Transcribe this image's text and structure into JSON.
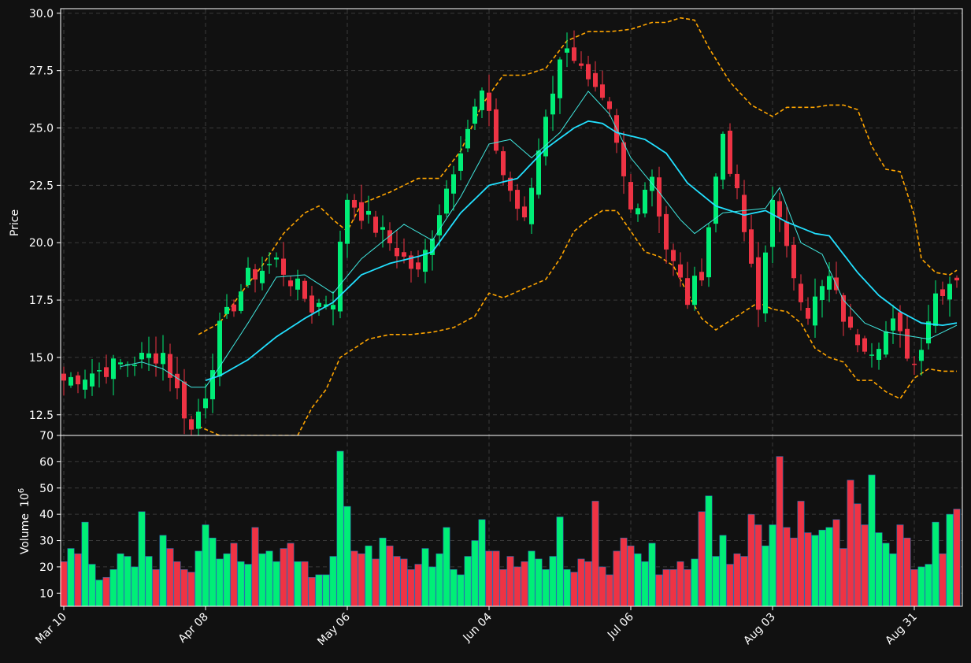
{
  "chart_data": {
    "type": "candlestick",
    "colors": {
      "background": "#111111",
      "up": "#00ee77",
      "down": "#ee3344",
      "ma_fast": "#40e8e0",
      "ma_slow": "#22e0ff",
      "band": "#ffa500",
      "grid": "#3a3a3a",
      "axis": "#ffffff"
    },
    "price_panel": {
      "ylabel": "Price",
      "ylim": [
        11.6,
        30.2
      ],
      "yticks": [
        12.5,
        15.0,
        17.5,
        20.0,
        22.5,
        25.0,
        27.5,
        30.0
      ],
      "ytick_labels": [
        "12.5",
        "15.0",
        "17.5",
        "20.0",
        "22.5",
        "25.0",
        "27.5",
        "30.0"
      ],
      "grid": true
    },
    "volume_panel": {
      "ylabel": "Volume",
      "ylabel_exp": "10",
      "ylabel_sup": "6",
      "ylim": [
        5,
        70
      ],
      "yticks": [
        10,
        20,
        30,
        40,
        50,
        60,
        70
      ],
      "ytick_labels": [
        "10",
        "20",
        "30",
        "40",
        "50",
        "60",
        "70"
      ],
      "grid": true
    },
    "xtick_indices": [
      0,
      20,
      40,
      60,
      80,
      100,
      120
    ],
    "xtick_labels": [
      "Mar 10",
      "Apr 08",
      "May 06",
      "Jun 04",
      "Jul 06",
      "Aug 03",
      "Aug 31"
    ],
    "close_anchors": [
      [
        0,
        14.0
      ],
      [
        8,
        14.7
      ],
      [
        14,
        15.2
      ],
      [
        18,
        11.8
      ],
      [
        20,
        13.5
      ],
      [
        22,
        16.2
      ],
      [
        26,
        18.5
      ],
      [
        30,
        19.2
      ],
      [
        35,
        17.2
      ],
      [
        38,
        17.6
      ],
      [
        40,
        22.0
      ],
      [
        46,
        20.0
      ],
      [
        50,
        18.6
      ],
      [
        52,
        20.5
      ],
      [
        56,
        24.3
      ],
      [
        59,
        26.5
      ],
      [
        62,
        23.0
      ],
      [
        65,
        20.8
      ],
      [
        68,
        25.7
      ],
      [
        71,
        28.8
      ],
      [
        74,
        26.8
      ],
      [
        77,
        25.5
      ],
      [
        80,
        21.4
      ],
      [
        83,
        23.0
      ],
      [
        85,
        19.8
      ],
      [
        88,
        17.5
      ],
      [
        90,
        18.8
      ],
      [
        93,
        24.8
      ],
      [
        96,
        20.5
      ],
      [
        98,
        17.0
      ],
      [
        100,
        22.2
      ],
      [
        102,
        19.5
      ],
      [
        105,
        17.0
      ],
      [
        108,
        18.4
      ],
      [
        111,
        16.0
      ],
      [
        114,
        15.5
      ],
      [
        117,
        16.4
      ],
      [
        120,
        14.7
      ],
      [
        123,
        17.8
      ],
      [
        126,
        18.6
      ]
    ],
    "ma_fast_anchors": [
      [
        8,
        14.6
      ],
      [
        11,
        14.8
      ],
      [
        14,
        14.5
      ],
      [
        18,
        13.7
      ],
      [
        20,
        13.7
      ],
      [
        22,
        14.6
      ],
      [
        26,
        16.5
      ],
      [
        30,
        18.5
      ],
      [
        34,
        18.6
      ],
      [
        38,
        17.8
      ],
      [
        42,
        19.3
      ],
      [
        48,
        20.8
      ],
      [
        52,
        20.1
      ],
      [
        56,
        22.0
      ],
      [
        60,
        24.3
      ],
      [
        63,
        24.5
      ],
      [
        66,
        23.7
      ],
      [
        70,
        24.8
      ],
      [
        74,
        26.6
      ],
      [
        77,
        25.6
      ],
      [
        80,
        23.7
      ],
      [
        84,
        22.2
      ],
      [
        87,
        21.0
      ],
      [
        89,
        20.4
      ],
      [
        93,
        21.3
      ],
      [
        96,
        21.4
      ],
      [
        99,
        21.5
      ],
      [
        101,
        22.4
      ],
      [
        104,
        20.0
      ],
      [
        107,
        19.5
      ],
      [
        110,
        17.5
      ],
      [
        113,
        16.5
      ],
      [
        116,
        16.1
      ],
      [
        120,
        15.9
      ],
      [
        122,
        15.8
      ],
      [
        126,
        16.4
      ]
    ],
    "ma_slow_anchors": [
      [
        20,
        14.0
      ],
      [
        22,
        14.2
      ],
      [
        26,
        14.9
      ],
      [
        30,
        15.9
      ],
      [
        34,
        16.7
      ],
      [
        38,
        17.4
      ],
      [
        42,
        18.6
      ],
      [
        46,
        19.1
      ],
      [
        50,
        19.4
      ],
      [
        52,
        19.6
      ],
      [
        56,
        21.3
      ],
      [
        60,
        22.5
      ],
      [
        64,
        22.8
      ],
      [
        68,
        24.1
      ],
      [
        72,
        25.0
      ],
      [
        74,
        25.3
      ],
      [
        76,
        25.2
      ],
      [
        78,
        24.8
      ],
      [
        82,
        24.5
      ],
      [
        85,
        23.9
      ],
      [
        88,
        22.6
      ],
      [
        92,
        21.6
      ],
      [
        96,
        21.2
      ],
      [
        99,
        21.4
      ],
      [
        102,
        20.9
      ],
      [
        106,
        20.4
      ],
      [
        108,
        20.3
      ],
      [
        112,
        18.7
      ],
      [
        115,
        17.7
      ],
      [
        118,
        17.0
      ],
      [
        121,
        16.5
      ],
      [
        124,
        16.4
      ],
      [
        126,
        16.5
      ]
    ],
    "band_upper_anchors": [
      [
        19,
        16.0
      ],
      [
        22,
        16.5
      ],
      [
        25,
        17.8
      ],
      [
        28,
        19.0
      ],
      [
        31,
        20.4
      ],
      [
        34,
        21.3
      ],
      [
        36,
        21.6
      ],
      [
        38,
        21.0
      ],
      [
        40,
        20.5
      ],
      [
        42,
        21.7
      ],
      [
        46,
        22.2
      ],
      [
        48,
        22.5
      ],
      [
        50,
        22.8
      ],
      [
        53,
        22.8
      ],
      [
        56,
        24.0
      ],
      [
        59,
        26.0
      ],
      [
        62,
        27.3
      ],
      [
        65,
        27.3
      ],
      [
        68,
        27.6
      ],
      [
        71,
        28.8
      ],
      [
        74,
        29.2
      ],
      [
        77,
        29.2
      ],
      [
        80,
        29.3
      ],
      [
        83,
        29.6
      ],
      [
        85,
        29.6
      ],
      [
        87,
        29.8
      ],
      [
        89,
        29.7
      ],
      [
        91,
        28.5
      ],
      [
        94,
        27.0
      ],
      [
        97,
        26.0
      ],
      [
        100,
        25.5
      ],
      [
        102,
        25.9
      ],
      [
        104,
        25.9
      ],
      [
        106,
        25.9
      ],
      [
        108,
        26.0
      ],
      [
        110,
        26.0
      ],
      [
        112,
        25.8
      ],
      [
        114,
        24.2
      ],
      [
        116,
        23.2
      ],
      [
        118,
        23.1
      ],
      [
        120,
        21.2
      ],
      [
        121,
        19.3
      ],
      [
        123,
        18.7
      ],
      [
        125,
        18.6
      ],
      [
        126,
        18.8
      ]
    ],
    "band_lower_anchors": [
      [
        19,
        12.0
      ],
      [
        22,
        11.6
      ],
      [
        33,
        11.6
      ],
      [
        35,
        12.8
      ],
      [
        37,
        13.6
      ],
      [
        39,
        15.0
      ],
      [
        41,
        15.4
      ],
      [
        43,
        15.8
      ],
      [
        46,
        16.0
      ],
      [
        49,
        16.0
      ],
      [
        52,
        16.1
      ],
      [
        55,
        16.3
      ],
      [
        58,
        16.8
      ],
      [
        60,
        17.8
      ],
      [
        62,
        17.6
      ],
      [
        65,
        18.0
      ],
      [
        68,
        18.4
      ],
      [
        70,
        19.3
      ],
      [
        72,
        20.5
      ],
      [
        74,
        21.0
      ],
      [
        76,
        21.4
      ],
      [
        78,
        21.4
      ],
      [
        80,
        20.5
      ],
      [
        82,
        19.6
      ],
      [
        84,
        19.4
      ],
      [
        86,
        19.0
      ],
      [
        88,
        17.8
      ],
      [
        90,
        16.7
      ],
      [
        92,
        16.2
      ],
      [
        94,
        16.6
      ],
      [
        96,
        17.0
      ],
      [
        98,
        17.4
      ],
      [
        100,
        17.1
      ],
      [
        102,
        17.0
      ],
      [
        104,
        16.5
      ],
      [
        106,
        15.4
      ],
      [
        108,
        15.0
      ],
      [
        110,
        14.8
      ],
      [
        112,
        14.0
      ],
      [
        114,
        14.0
      ],
      [
        116,
        13.5
      ],
      [
        118,
        13.2
      ],
      [
        120,
        14.1
      ],
      [
        122,
        14.5
      ],
      [
        124,
        14.4
      ],
      [
        126,
        14.4
      ]
    ],
    "volume_anchors": [
      [
        0,
        22
      ],
      [
        1,
        27
      ],
      [
        2,
        25
      ],
      [
        3,
        37
      ],
      [
        4,
        21
      ],
      [
        5,
        15
      ],
      [
        6,
        16
      ],
      [
        7,
        19
      ],
      [
        8,
        25
      ],
      [
        9,
        24
      ],
      [
        10,
        20
      ],
      [
        11,
        41
      ],
      [
        12,
        24
      ],
      [
        13,
        19
      ],
      [
        14,
        32
      ],
      [
        15,
        27
      ],
      [
        16,
        22
      ],
      [
        17,
        19
      ],
      [
        18,
        18
      ],
      [
        19,
        26
      ],
      [
        20,
        36
      ],
      [
        21,
        31
      ],
      [
        22,
        23
      ],
      [
        23,
        25
      ],
      [
        24,
        29
      ],
      [
        25,
        22
      ],
      [
        26,
        21
      ],
      [
        27,
        35
      ],
      [
        28,
        25
      ],
      [
        29,
        26
      ],
      [
        30,
        22
      ],
      [
        31,
        27
      ],
      [
        32,
        29
      ],
      [
        33,
        22
      ],
      [
        34,
        22
      ],
      [
        35,
        16
      ],
      [
        36,
        17
      ],
      [
        37,
        17
      ],
      [
        38,
        24
      ],
      [
        39,
        64
      ],
      [
        40,
        43
      ],
      [
        41,
        26
      ],
      [
        42,
        25
      ],
      [
        43,
        28
      ],
      [
        44,
        23
      ],
      [
        45,
        31
      ],
      [
        46,
        28
      ],
      [
        47,
        24
      ],
      [
        48,
        23
      ],
      [
        49,
        19
      ],
      [
        50,
        21
      ],
      [
        51,
        27
      ],
      [
        52,
        20
      ],
      [
        53,
        25
      ],
      [
        54,
        35
      ],
      [
        55,
        19
      ],
      [
        56,
        17
      ],
      [
        57,
        24
      ],
      [
        58,
        30
      ],
      [
        59,
        38
      ],
      [
        60,
        26
      ],
      [
        61,
        26
      ],
      [
        62,
        19
      ],
      [
        63,
        24
      ],
      [
        64,
        20
      ],
      [
        65,
        22
      ],
      [
        66,
        26
      ],
      [
        67,
        23
      ],
      [
        68,
        19
      ],
      [
        69,
        24
      ],
      [
        70,
        39
      ],
      [
        71,
        19
      ],
      [
        72,
        18
      ],
      [
        73,
        23
      ],
      [
        74,
        22
      ],
      [
        75,
        45
      ],
      [
        76,
        20
      ],
      [
        77,
        17
      ],
      [
        78,
        26
      ],
      [
        79,
        31
      ],
      [
        80,
        28
      ],
      [
        81,
        25
      ],
      [
        82,
        22
      ],
      [
        83,
        29
      ],
      [
        84,
        17
      ],
      [
        85,
        19
      ],
      [
        86,
        19
      ],
      [
        87,
        22
      ],
      [
        88,
        19
      ],
      [
        89,
        23
      ],
      [
        90,
        41
      ],
      [
        91,
        47
      ],
      [
        92,
        24
      ],
      [
        93,
        32
      ],
      [
        94,
        21
      ],
      [
        95,
        25
      ],
      [
        96,
        24
      ],
      [
        97,
        40
      ],
      [
        98,
        36
      ],
      [
        99,
        28
      ],
      [
        100,
        36
      ],
      [
        101,
        62
      ],
      [
        102,
        35
      ],
      [
        103,
        31
      ],
      [
        104,
        45
      ],
      [
        105,
        33
      ],
      [
        106,
        32
      ],
      [
        107,
        34
      ],
      [
        108,
        35
      ],
      [
        109,
        38
      ],
      [
        110,
        27
      ],
      [
        111,
        53
      ],
      [
        112,
        44
      ],
      [
        113,
        36
      ],
      [
        114,
        55
      ],
      [
        115,
        33
      ],
      [
        116,
        29
      ],
      [
        117,
        25
      ],
      [
        118,
        36
      ],
      [
        119,
        31
      ],
      [
        120,
        19
      ],
      [
        121,
        20
      ],
      [
        122,
        21
      ],
      [
        123,
        37
      ],
      [
        124,
        25
      ],
      [
        125,
        40
      ],
      [
        126,
        42
      ]
    ],
    "n_bars": 127
  }
}
